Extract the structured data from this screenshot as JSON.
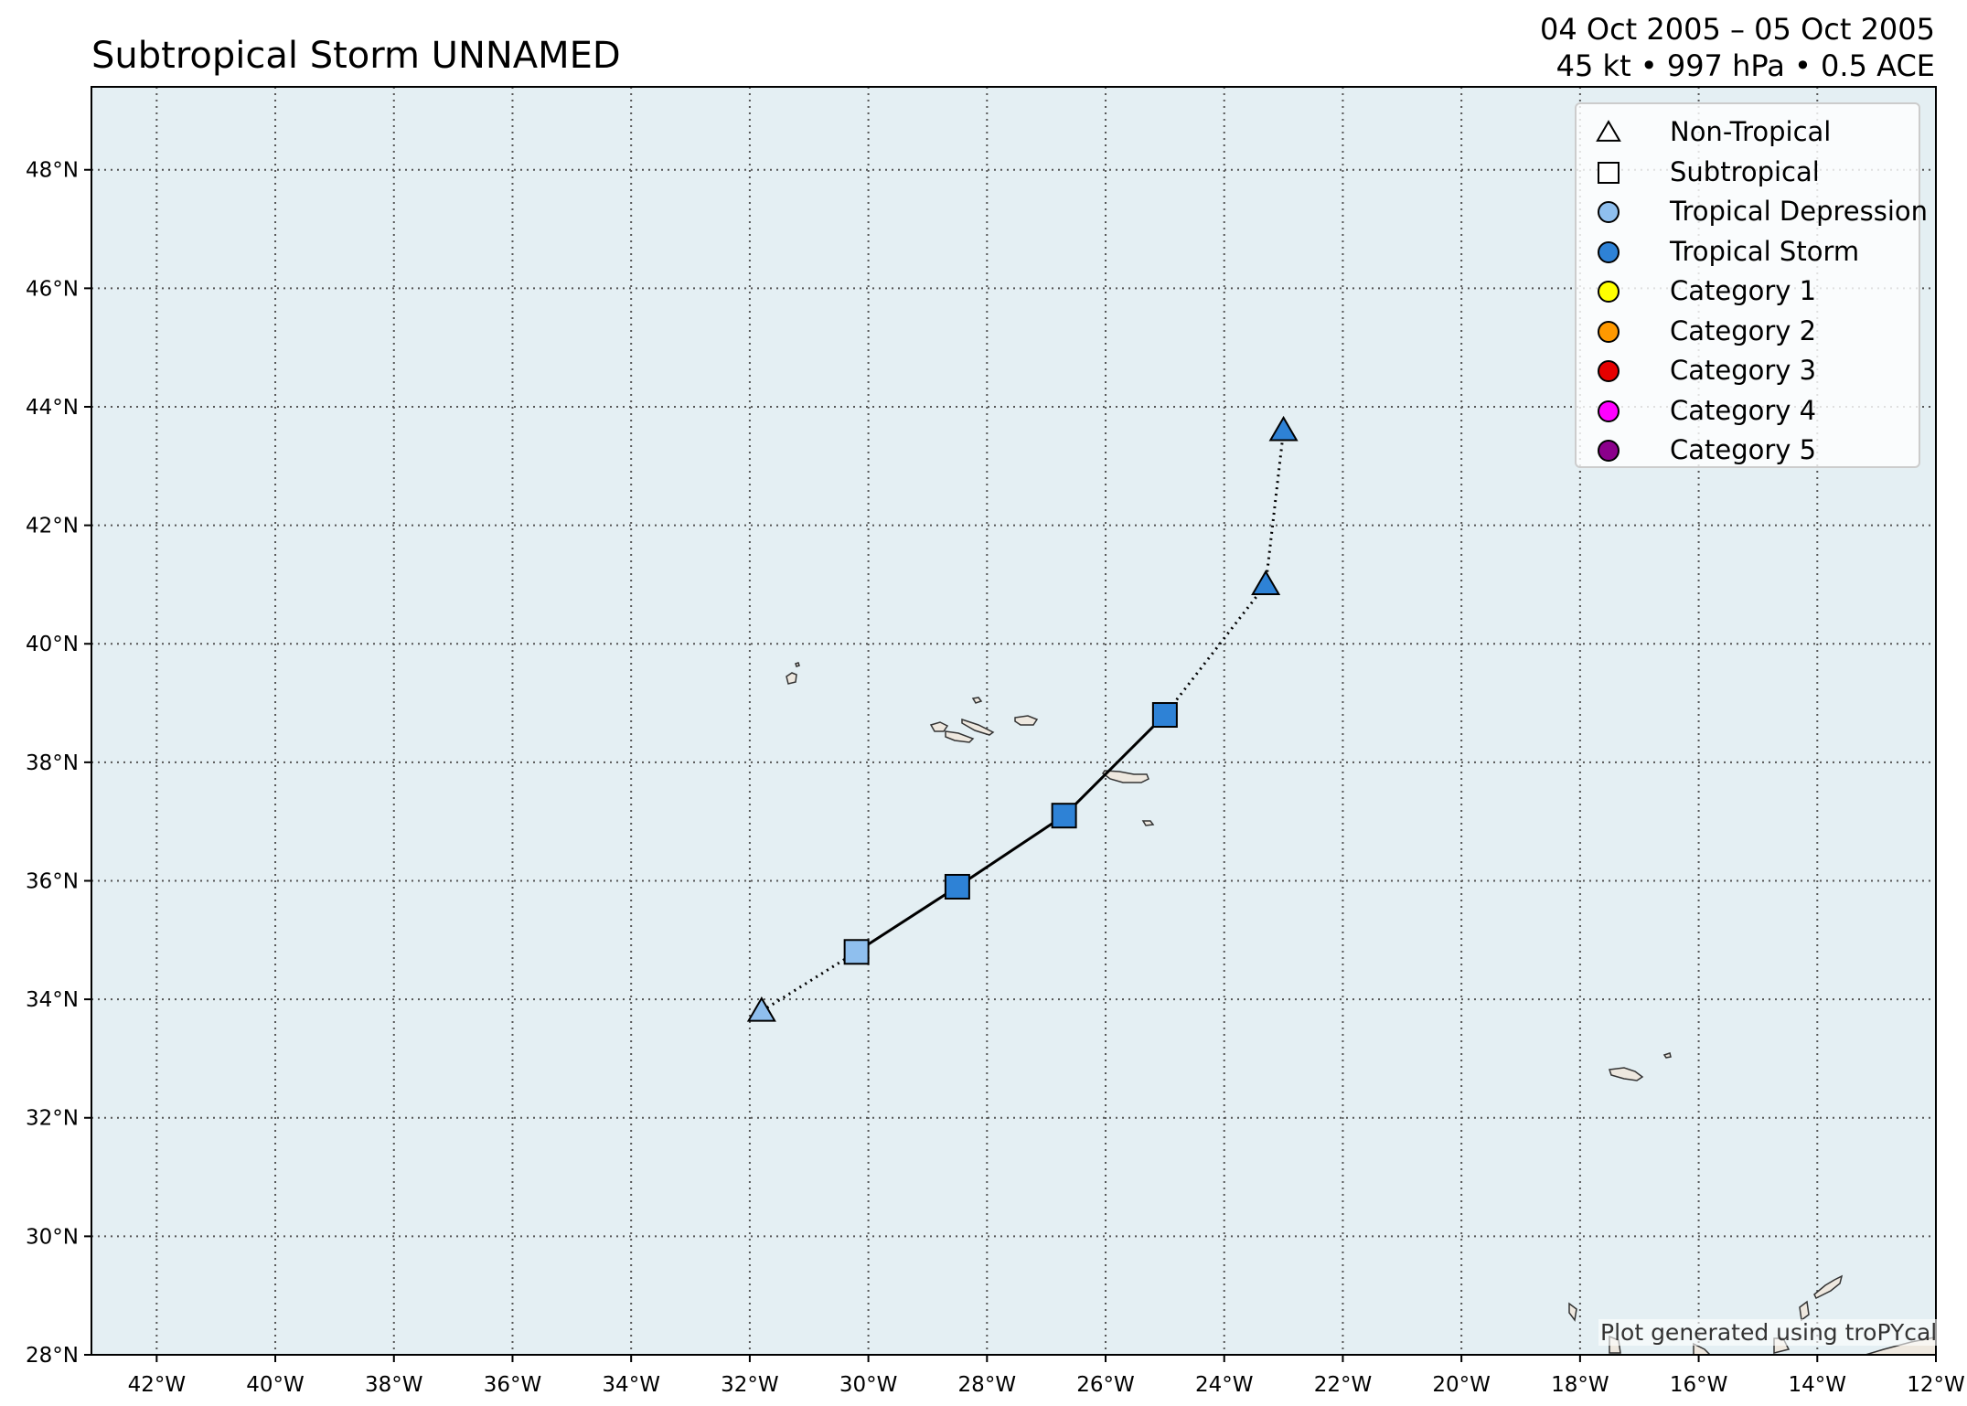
{
  "title": "Subtropical Storm UNNAMED",
  "subtitle": {
    "dates": "04 Oct 2005 – 05 Oct 2005",
    "stats": "45 kt • 997 hPa • 0.5 ACE"
  },
  "credit": "Plot generated using troPYcal",
  "colors": {
    "ocean": "#e4eff3",
    "land": "#eee8df",
    "tropical_depression": "#8fbfee",
    "tropical_storm": "#2e82d6",
    "category_1": "#ffff00",
    "category_2": "#ff9900",
    "category_3": "#e60000",
    "category_4": "#ff00ff",
    "category_5": "#8b008b"
  },
  "legend": [
    {
      "label": "Non-Tropical",
      "shape": "triangle",
      "color": "#ffffff"
    },
    {
      "label": "Subtropical",
      "shape": "square",
      "color": "#ffffff"
    },
    {
      "label": "Tropical Depression",
      "shape": "circle",
      "color": "#8fbfee"
    },
    {
      "label": "Tropical Storm",
      "shape": "circle",
      "color": "#2e82d6"
    },
    {
      "label": "Category 1",
      "shape": "circle",
      "color": "#ffff00"
    },
    {
      "label": "Category 2",
      "shape": "circle",
      "color": "#ff9900"
    },
    {
      "label": "Category 3",
      "shape": "circle",
      "color": "#e60000"
    },
    {
      "label": "Category 4",
      "shape": "circle",
      "color": "#ff00ff"
    },
    {
      "label": "Category 5",
      "shape": "circle",
      "color": "#8b008b"
    }
  ],
  "map": {
    "lon_range": [
      -43.1,
      -12.0
    ],
    "lat_range": [
      28.0,
      49.4
    ],
    "lon_ticks": [
      "42°W",
      "40°W",
      "38°W",
      "36°W",
      "34°W",
      "32°W",
      "30°W",
      "28°W",
      "26°W",
      "24°W",
      "22°W",
      "20°W",
      "18°W",
      "16°W",
      "14°W",
      "12°W"
    ],
    "lat_ticks": [
      "28°N",
      "30°N",
      "32°N",
      "34°N",
      "36°N",
      "38°N",
      "40°N",
      "42°N",
      "44°N",
      "46°N",
      "48°N"
    ],
    "grid": true
  },
  "track": [
    {
      "lon": -31.8,
      "lat": 33.8,
      "type": "Non-Tropical",
      "intensity": "Tropical Depression"
    },
    {
      "lon": -30.2,
      "lat": 34.8,
      "type": "Subtropical",
      "intensity": "Tropical Depression"
    },
    {
      "lon": -28.5,
      "lat": 35.9,
      "type": "Subtropical",
      "intensity": "Tropical Storm"
    },
    {
      "lon": -26.7,
      "lat": 37.1,
      "type": "Subtropical",
      "intensity": "Tropical Storm"
    },
    {
      "lon": -25.0,
      "lat": 38.8,
      "type": "Subtropical",
      "intensity": "Tropical Storm"
    },
    {
      "lon": -23.3,
      "lat": 41.0,
      "type": "Non-Tropical",
      "intensity": "Tropical Storm"
    },
    {
      "lon": -23.0,
      "lat": 43.6,
      "type": "Non-Tropical",
      "intensity": "Tropical Storm"
    }
  ]
}
